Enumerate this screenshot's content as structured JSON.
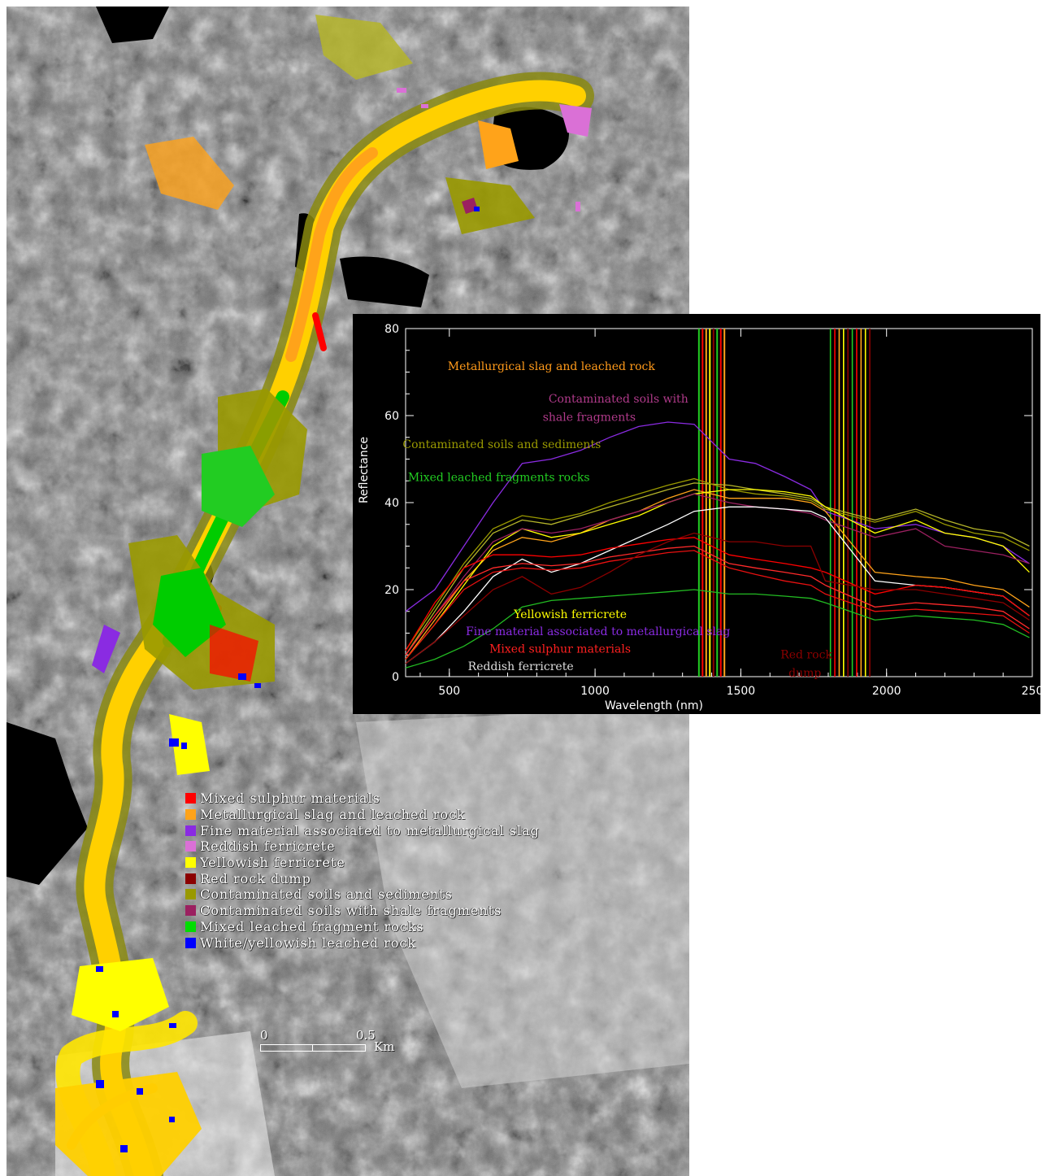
{
  "legend": [
    {
      "label": "Mixed sulphur materials",
      "color": "#ff0000"
    },
    {
      "label": "Metallurgical slag and leached rock",
      "color": "#ffa31a"
    },
    {
      "label": "Fine material associated to metallurgical slag",
      "color": "#8a2be2"
    },
    {
      "label": "Reddish ferricrete",
      "color": "#da70d6"
    },
    {
      "label": "Yellowish ferricrete",
      "color": "#ffff00"
    },
    {
      "label": "Red rock dump",
      "color": "#8b0000"
    },
    {
      "label": "Contaminated soils and sediments",
      "color": "#999900"
    },
    {
      "label": "Contaminated soils with shale fragments",
      "color": "#9b2060"
    },
    {
      "label": "Mixed leached fragment rocks",
      "color": "#00dd00"
    },
    {
      "label": "White/yellowish leached rock",
      "color": "#0000ff"
    }
  ],
  "scalebar": {
    "start": "0",
    "mid": "0.5",
    "unit": "Km"
  },
  "chart_data": {
    "type": "line",
    "xlabel": "Wavelength (nm)",
    "ylabel": "Reflectance",
    "xlim": [
      350,
      2500
    ],
    "ylim": [
      0,
      80
    ],
    "xticks": [
      "500",
      "1000",
      "1500",
      "2000",
      "250"
    ],
    "yticks": [
      "0",
      "20",
      "40",
      "60",
      "80"
    ],
    "gaps": [
      [
        1350,
        1450
      ],
      [
        1800,
        1950
      ]
    ],
    "annotations": [
      {
        "text": "Metallurgical slag and leached rock",
        "color": "#ff9a1a",
        "x": 850,
        "y": 70.5
      },
      {
        "text": "Contaminated soils with",
        "color": "#b03a8a",
        "x": 1080,
        "y": 63
      },
      {
        "text": "shale fragments",
        "color": "#b03a8a",
        "x": 980,
        "y": 58.8
      },
      {
        "text": "Contaminated soils and sediments",
        "color": "#999900",
        "x": 680,
        "y": 52.5
      },
      {
        "text": "Mixed leached fragments rocks",
        "color": "#22cc22",
        "x": 670,
        "y": 45
      },
      {
        "text": "Yellowish ferricrete",
        "color": "#ffff00",
        "x": 915,
        "y": 13.5
      },
      {
        "text": "Fine material associated to metallurgical slag",
        "color": "#8a2be2",
        "x": 1010,
        "y": 9.5
      },
      {
        "text": "Mixed sulphur materials",
        "color": "#ff2020",
        "x": 880,
        "y": 5.5
      },
      {
        "text": "Reddish ferricrete",
        "color": "#dddddd",
        "x": 745,
        "y": 1.5
      },
      {
        "text": "Red rock",
        "color": "#8b0000",
        "x": 1725,
        "y": 4.2
      },
      {
        "text": "dump",
        "color": "#8b0000",
        "x": 1720,
        "y": 0
      }
    ],
    "series": [
      {
        "color": "#8a2be2",
        "values": [
          [
            350,
            15
          ],
          [
            450,
            20
          ],
          [
            550,
            30
          ],
          [
            650,
            40
          ],
          [
            750,
            49
          ],
          [
            850,
            50
          ],
          [
            950,
            52
          ],
          [
            1050,
            55
          ],
          [
            1150,
            57.5
          ],
          [
            1250,
            58.5
          ],
          [
            1340,
            58
          ],
          [
            1460,
            50
          ],
          [
            1550,
            49
          ],
          [
            1650,
            46
          ],
          [
            1740,
            43
          ],
          [
            1790,
            38
          ],
          [
            1960,
            34
          ],
          [
            2100,
            35
          ],
          [
            2200,
            33
          ],
          [
            2300,
            32
          ],
          [
            2400,
            30
          ],
          [
            2490,
            26
          ]
        ]
      },
      {
        "color": "#b5b52a",
        "values": [
          [
            350,
            5
          ],
          [
            450,
            15
          ],
          [
            550,
            25
          ],
          [
            650,
            33
          ],
          [
            750,
            36
          ],
          [
            850,
            35
          ],
          [
            950,
            37
          ],
          [
            1050,
            39
          ],
          [
            1150,
            41
          ],
          [
            1250,
            43
          ],
          [
            1340,
            44.5
          ],
          [
            1460,
            44
          ],
          [
            1550,
            43
          ],
          [
            1650,
            42
          ],
          [
            1740,
            41
          ],
          [
            1790,
            39
          ],
          [
            1960,
            36
          ],
          [
            2100,
            38.5
          ],
          [
            2200,
            36
          ],
          [
            2300,
            34
          ],
          [
            2400,
            33
          ],
          [
            2490,
            30
          ]
        ]
      },
      {
        "color": "#999900",
        "values": [
          [
            350,
            6
          ],
          [
            450,
            16
          ],
          [
            550,
            26
          ],
          [
            650,
            34
          ],
          [
            750,
            37
          ],
          [
            850,
            36
          ],
          [
            950,
            37.5
          ],
          [
            1050,
            40
          ],
          [
            1150,
            42
          ],
          [
            1250,
            44
          ],
          [
            1340,
            45.5
          ],
          [
            1460,
            43
          ],
          [
            1550,
            42
          ],
          [
            1650,
            41.5
          ],
          [
            1740,
            40.5
          ],
          [
            1790,
            38.5
          ],
          [
            1960,
            35.5
          ],
          [
            2100,
            38
          ],
          [
            2200,
            35
          ],
          [
            2300,
            33
          ],
          [
            2400,
            32
          ],
          [
            2490,
            29
          ]
        ]
      },
      {
        "color": "#ffa31a",
        "values": [
          [
            350,
            4
          ],
          [
            450,
            13
          ],
          [
            550,
            22
          ],
          [
            650,
            29
          ],
          [
            750,
            32
          ],
          [
            850,
            31
          ],
          [
            950,
            33
          ],
          [
            1050,
            36
          ],
          [
            1150,
            38
          ],
          [
            1250,
            41
          ],
          [
            1340,
            43
          ],
          [
            1460,
            41
          ],
          [
            1550,
            41
          ],
          [
            1650,
            41
          ],
          [
            1740,
            40
          ],
          [
            1790,
            38
          ],
          [
            1960,
            24
          ],
          [
            2100,
            23
          ],
          [
            2200,
            22.5
          ],
          [
            2300,
            21
          ],
          [
            2400,
            20
          ],
          [
            2490,
            16
          ]
        ]
      },
      {
        "color": "#ffff00",
        "values": [
          [
            350,
            4
          ],
          [
            450,
            12
          ],
          [
            550,
            21
          ],
          [
            650,
            30
          ],
          [
            750,
            34
          ],
          [
            850,
            32
          ],
          [
            950,
            33
          ],
          [
            1050,
            35
          ],
          [
            1150,
            37
          ],
          [
            1250,
            40
          ],
          [
            1340,
            42
          ],
          [
            1460,
            43
          ],
          [
            1550,
            43
          ],
          [
            1650,
            42.5
          ],
          [
            1740,
            41.5
          ],
          [
            1790,
            39
          ],
          [
            1960,
            33
          ],
          [
            2100,
            36
          ],
          [
            2200,
            33
          ],
          [
            2300,
            32
          ],
          [
            2400,
            30
          ],
          [
            2490,
            24
          ]
        ]
      },
      {
        "color": "#9b2060",
        "values": [
          [
            350,
            5
          ],
          [
            450,
            14
          ],
          [
            550,
            23
          ],
          [
            650,
            31
          ],
          [
            750,
            34
          ],
          [
            850,
            33
          ],
          [
            950,
            34
          ],
          [
            1050,
            36
          ],
          [
            1150,
            38
          ],
          [
            1250,
            40
          ],
          [
            1340,
            42
          ],
          [
            1460,
            40
          ],
          [
            1550,
            39
          ],
          [
            1650,
            38.5
          ],
          [
            1740,
            37.5
          ],
          [
            1790,
            36
          ],
          [
            1960,
            32
          ],
          [
            2100,
            34
          ],
          [
            2200,
            30
          ],
          [
            2300,
            29
          ],
          [
            2400,
            28
          ],
          [
            2490,
            26
          ]
        ]
      },
      {
        "color": "#ffffff",
        "values": [
          [
            350,
            3
          ],
          [
            450,
            8
          ],
          [
            550,
            15
          ],
          [
            650,
            23
          ],
          [
            750,
            27
          ],
          [
            850,
            24
          ],
          [
            950,
            26
          ],
          [
            1050,
            29
          ],
          [
            1150,
            32
          ],
          [
            1250,
            35
          ],
          [
            1340,
            38
          ],
          [
            1460,
            39
          ],
          [
            1550,
            39
          ],
          [
            1650,
            38.5
          ],
          [
            1740,
            38
          ],
          [
            1790,
            36.5
          ],
          [
            1960,
            22
          ],
          [
            2100,
            21
          ],
          [
            2200,
            20.5
          ],
          [
            2300,
            19.5
          ],
          [
            2400,
            18.5
          ],
          [
            2490,
            14
          ]
        ]
      },
      {
        "color": "#ff0000",
        "values": [
          [
            350,
            6
          ],
          [
            450,
            17
          ],
          [
            550,
            25
          ],
          [
            650,
            28
          ],
          [
            750,
            28
          ],
          [
            850,
            27.5
          ],
          [
            950,
            28
          ],
          [
            1050,
            29.5
          ],
          [
            1150,
            30.5
          ],
          [
            1250,
            31.5
          ],
          [
            1340,
            32
          ],
          [
            1460,
            28
          ],
          [
            1550,
            27
          ],
          [
            1650,
            26
          ],
          [
            1740,
            25
          ],
          [
            1790,
            24
          ],
          [
            1960,
            19
          ],
          [
            2100,
            21
          ],
          [
            2200,
            20.5
          ],
          [
            2300,
            19.5
          ],
          [
            2400,
            18.5
          ],
          [
            2490,
            14
          ]
        ]
      },
      {
        "color": "#ff2a2a",
        "values": [
          [
            350,
            5
          ],
          [
            450,
            14
          ],
          [
            550,
            22
          ],
          [
            650,
            25
          ],
          [
            750,
            26
          ],
          [
            850,
            25.5
          ],
          [
            950,
            26
          ],
          [
            1050,
            27.5
          ],
          [
            1150,
            28.5
          ],
          [
            1250,
            29.5
          ],
          [
            1340,
            30
          ],
          [
            1460,
            26
          ],
          [
            1550,
            25
          ],
          [
            1650,
            24
          ],
          [
            1740,
            23
          ],
          [
            1790,
            21
          ],
          [
            1960,
            16
          ],
          [
            2100,
            17
          ],
          [
            2200,
            16.5
          ],
          [
            2300,
            16
          ],
          [
            2400,
            15
          ],
          [
            2490,
            11
          ]
        ]
      },
      {
        "color": "#e81010",
        "values": [
          [
            350,
            4
          ],
          [
            450,
            12
          ],
          [
            550,
            20
          ],
          [
            650,
            24
          ],
          [
            750,
            25
          ],
          [
            850,
            24.5
          ],
          [
            950,
            25
          ],
          [
            1050,
            26.5
          ],
          [
            1150,
            27.5
          ],
          [
            1250,
            28.5
          ],
          [
            1340,
            29
          ],
          [
            1460,
            25
          ],
          [
            1550,
            23.5
          ],
          [
            1650,
            22
          ],
          [
            1740,
            21
          ],
          [
            1790,
            19
          ],
          [
            1960,
            15
          ],
          [
            2100,
            15.5
          ],
          [
            2200,
            15
          ],
          [
            2300,
            14.5
          ],
          [
            2400,
            14
          ],
          [
            2490,
            10
          ]
        ]
      },
      {
        "color": "#8b0000",
        "values": [
          [
            350,
            3
          ],
          [
            450,
            8
          ],
          [
            550,
            14
          ],
          [
            650,
            20
          ],
          [
            750,
            23
          ],
          [
            850,
            19
          ],
          [
            950,
            20.5
          ],
          [
            1050,
            24
          ],
          [
            1150,
            28
          ],
          [
            1250,
            31
          ],
          [
            1340,
            33
          ],
          [
            1460,
            31
          ],
          [
            1550,
            31
          ],
          [
            1650,
            30
          ],
          [
            1740,
            30
          ],
          [
            1790,
            22
          ],
          [
            1960,
            20
          ],
          [
            2100,
            20
          ],
          [
            2200,
            19
          ],
          [
            2300,
            18
          ],
          [
            2400,
            17
          ],
          [
            2490,
            13
          ]
        ]
      },
      {
        "color": "#22bb22",
        "values": [
          [
            350,
            2
          ],
          [
            450,
            4
          ],
          [
            550,
            7
          ],
          [
            650,
            11
          ],
          [
            750,
            16
          ],
          [
            850,
            17.5
          ],
          [
            950,
            18
          ],
          [
            1050,
            18.5
          ],
          [
            1150,
            19
          ],
          [
            1250,
            19.5
          ],
          [
            1340,
            20
          ],
          [
            1460,
            19
          ],
          [
            1550,
            19
          ],
          [
            1650,
            18.5
          ],
          [
            1740,
            18
          ],
          [
            1790,
            17
          ],
          [
            1960,
            13
          ],
          [
            2100,
            14
          ],
          [
            2200,
            13.5
          ],
          [
            2300,
            13
          ],
          [
            2400,
            12
          ],
          [
            2490,
            9
          ]
        ]
      }
    ]
  }
}
